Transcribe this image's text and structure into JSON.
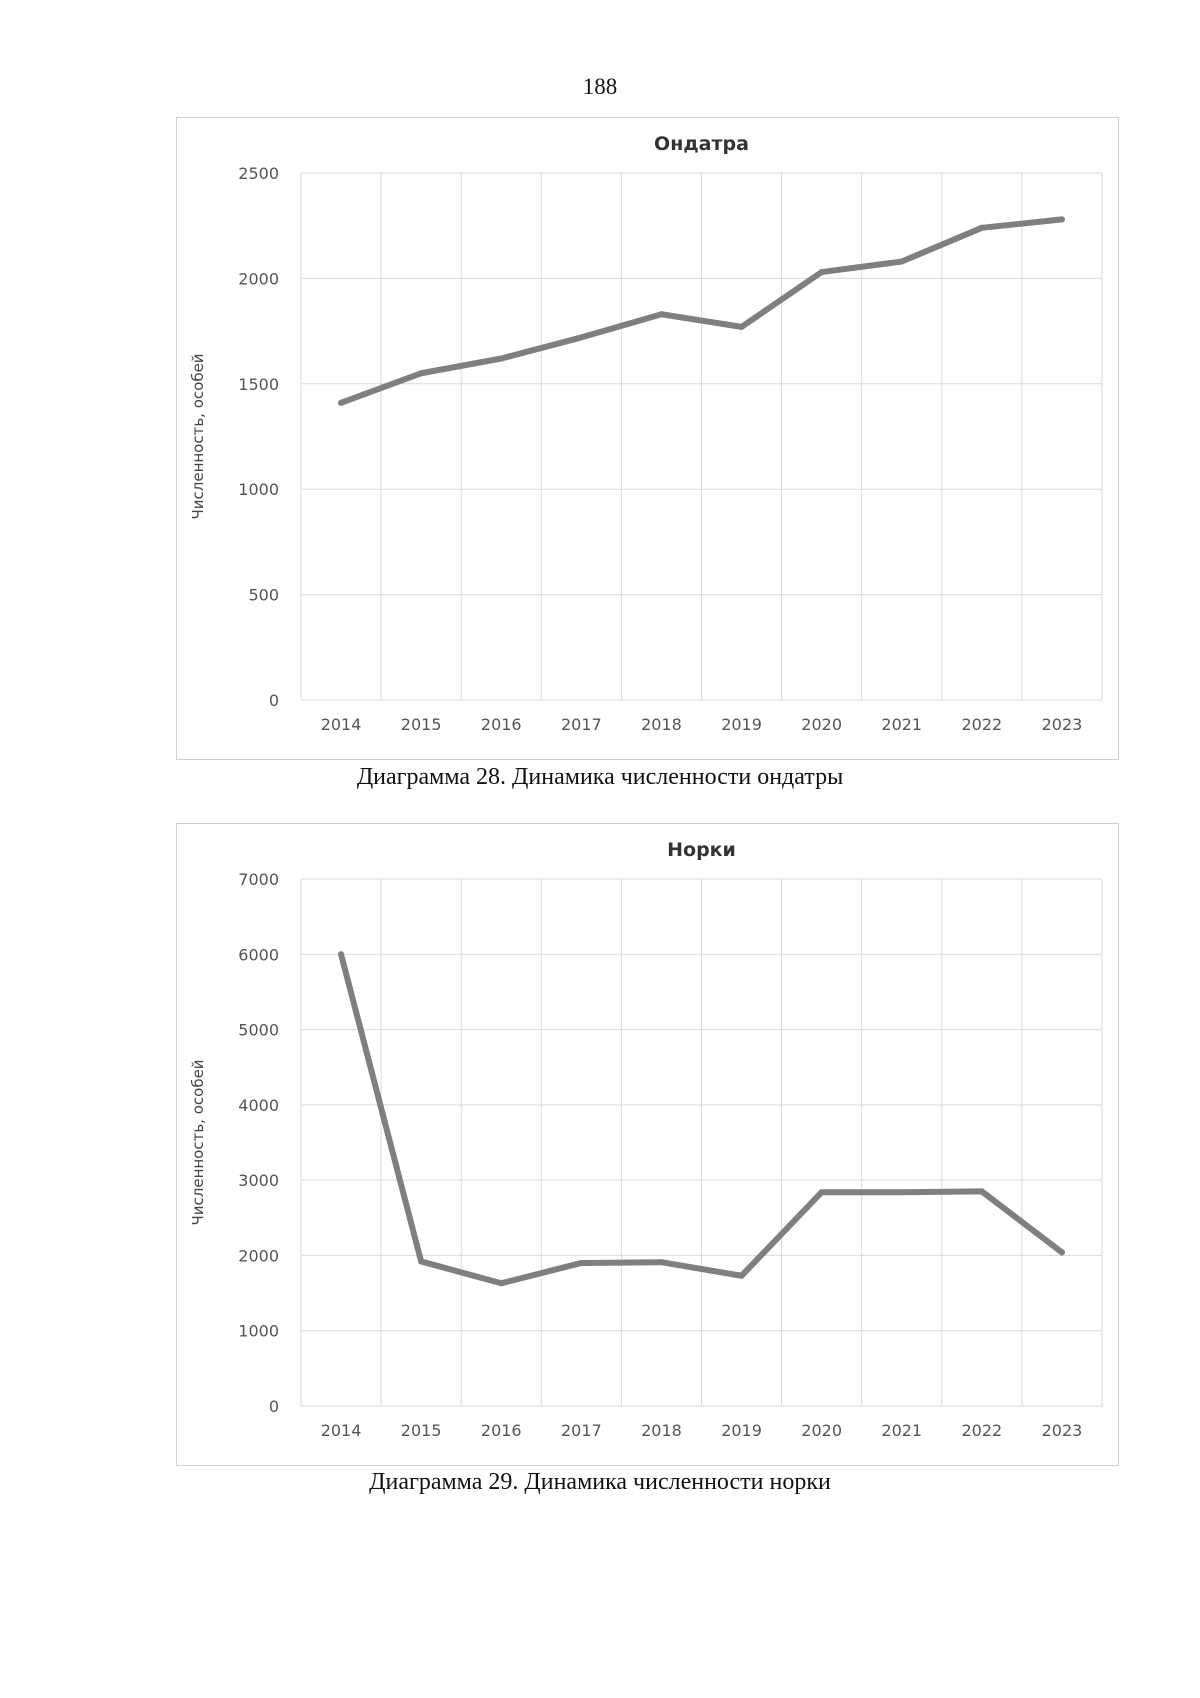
{
  "page": {
    "number": "188"
  },
  "captions": [
    "Диаграмма 28. Динамика численности ондатры",
    "Диаграмма 29. Динамика численности норки"
  ],
  "chart_data": [
    {
      "type": "line",
      "title": "Ондатра",
      "xlabel": "",
      "ylabel": "Численность, особей",
      "categories": [
        "2014",
        "2015",
        "2016",
        "2017",
        "2018",
        "2019",
        "2020",
        "2021",
        "2022",
        "2023"
      ],
      "series": [
        {
          "name": "Ондатра",
          "values": [
            1410,
            1550,
            1620,
            1720,
            1830,
            1770,
            2030,
            2080,
            2240,
            2280
          ]
        }
      ],
      "ylim": [
        0,
        2500
      ],
      "yticks": [
        0,
        500,
        1000,
        1500,
        2000,
        2500
      ],
      "grid": true,
      "legend": "none",
      "color": "#7f7f7f"
    },
    {
      "type": "line",
      "title": "Норки",
      "xlabel": "",
      "ylabel": "Численность, особей",
      "categories": [
        "2014",
        "2015",
        "2016",
        "2017",
        "2018",
        "2019",
        "2020",
        "2021",
        "2022",
        "2023"
      ],
      "series": [
        {
          "name": "Норки",
          "values": [
            6000,
            1920,
            1630,
            1900,
            1910,
            1730,
            2840,
            2840,
            2850,
            2040
          ]
        }
      ],
      "ylim": [
        0,
        7000
      ],
      "yticks": [
        0,
        1000,
        2000,
        3000,
        4000,
        5000,
        6000,
        7000
      ],
      "grid": true,
      "legend": "none",
      "color": "#7f7f7f"
    }
  ]
}
